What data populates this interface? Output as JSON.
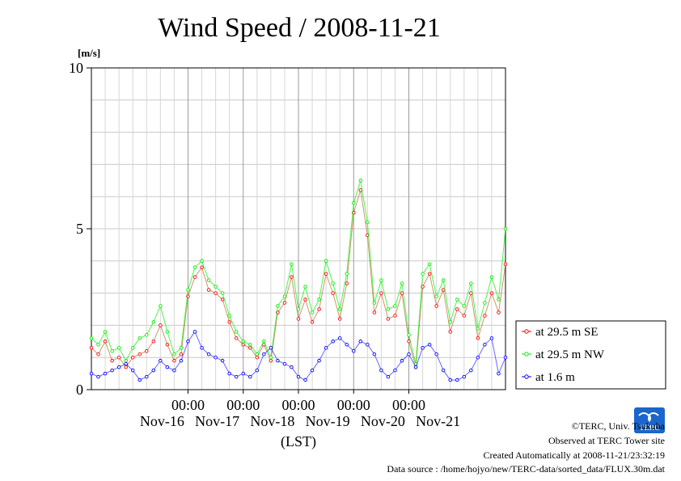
{
  "chart_data": {
    "type": "line",
    "title": "Wind Speed / 2008-11-21",
    "yunit": "[m/s]",
    "ylim": [
      0,
      10
    ],
    "yticks": [
      "0",
      "5",
      "10"
    ],
    "xtick_times": [
      "00:00",
      "00:00",
      "00:00",
      "00:00",
      "00:00"
    ],
    "xtick_dates": [
      "Nov-16",
      "Nov-17",
      "Nov-18",
      "Nov-19",
      "Nov-20",
      "Nov-21"
    ],
    "xlabel": "(LST)",
    "grid": true,
    "legend_position": "right",
    "series": [
      {
        "name": "at 29.5 m SE",
        "color": "#ff0000",
        "x_hours": [
          0,
          3,
          6,
          9,
          12,
          15,
          18,
          21,
          24,
          27,
          30,
          33,
          36,
          39,
          42,
          45,
          48,
          51,
          54,
          57,
          60,
          63,
          66,
          69,
          72,
          75,
          78,
          81,
          84,
          87,
          90,
          93,
          96,
          99,
          102,
          105,
          108,
          111,
          114,
          117,
          120,
          123,
          126,
          129,
          132,
          135,
          138,
          141,
          144,
          147,
          150,
          153,
          156,
          159,
          162,
          165,
          168,
          171,
          174,
          177,
          180
        ],
        "values": [
          1.3,
          1.1,
          1.5,
          0.9,
          1.0,
          0.7,
          1.0,
          1.1,
          1.2,
          1.5,
          2.0,
          1.4,
          0.9,
          1.1,
          2.9,
          3.5,
          3.8,
          3.1,
          3.0,
          2.8,
          2.1,
          1.6,
          1.4,
          1.3,
          1.0,
          1.4,
          0.9,
          2.4,
          2.7,
          3.5,
          2.2,
          2.8,
          2.1,
          2.5,
          3.6,
          3.0,
          2.2,
          3.3,
          5.5,
          6.2,
          4.8,
          2.4,
          3.0,
          2.2,
          2.3,
          3.0,
          1.5,
          0.7,
          3.2,
          3.6,
          2.6,
          3.1,
          1.8,
          2.5,
          2.3,
          3.0,
          1.6,
          2.3,
          3.0,
          2.4,
          3.9
        ]
      },
      {
        "name": "at 29.5 m NW",
        "color": "#00ee00",
        "x_hours": [
          0,
          3,
          6,
          9,
          12,
          15,
          18,
          21,
          24,
          27,
          30,
          33,
          36,
          39,
          42,
          45,
          48,
          51,
          54,
          57,
          60,
          63,
          66,
          69,
          72,
          75,
          78,
          81,
          84,
          87,
          90,
          93,
          96,
          99,
          102,
          105,
          108,
          111,
          114,
          117,
          120,
          123,
          126,
          129,
          132,
          135,
          138,
          141,
          144,
          147,
          150,
          153,
          156,
          159,
          162,
          165,
          168,
          171,
          174,
          177,
          180
        ],
        "values": [
          1.6,
          1.4,
          1.8,
          1.2,
          1.3,
          0.9,
          1.3,
          1.6,
          1.7,
          2.1,
          2.6,
          1.8,
          1.1,
          1.3,
          3.1,
          3.8,
          4.0,
          3.4,
          3.2,
          3.0,
          2.3,
          1.8,
          1.5,
          1.4,
          1.1,
          1.5,
          1.0,
          2.6,
          2.9,
          3.9,
          2.5,
          3.2,
          2.4,
          2.8,
          4.0,
          3.3,
          2.5,
          3.6,
          5.8,
          6.5,
          5.2,
          2.7,
          3.4,
          2.5,
          2.6,
          3.3,
          1.7,
          0.8,
          3.6,
          3.9,
          2.9,
          3.4,
          2.1,
          2.8,
          2.6,
          3.3,
          1.9,
          2.7,
          3.5,
          2.8,
          5.0
        ]
      },
      {
        "name": "at 1.6 m",
        "color": "#0000ff",
        "x_hours": [
          0,
          3,
          6,
          9,
          12,
          15,
          18,
          21,
          24,
          27,
          30,
          33,
          36,
          39,
          42,
          45,
          48,
          51,
          54,
          57,
          60,
          63,
          66,
          69,
          72,
          75,
          78,
          81,
          84,
          87,
          90,
          93,
          96,
          99,
          102,
          105,
          108,
          111,
          114,
          117,
          120,
          123,
          126,
          129,
          132,
          135,
          138,
          141,
          144,
          147,
          150,
          153,
          156,
          159,
          162,
          165,
          168,
          171,
          174,
          177,
          180
        ],
        "values": [
          0.5,
          0.4,
          0.5,
          0.6,
          0.7,
          0.8,
          0.6,
          0.3,
          0.4,
          0.6,
          0.9,
          0.7,
          0.6,
          0.9,
          1.5,
          1.8,
          1.3,
          1.1,
          1.0,
          0.9,
          0.5,
          0.4,
          0.5,
          0.4,
          0.6,
          1.1,
          1.3,
          0.9,
          0.8,
          0.7,
          0.4,
          0.3,
          0.6,
          0.9,
          1.3,
          1.5,
          1.6,
          1.4,
          1.2,
          1.5,
          1.4,
          1.1,
          0.6,
          0.4,
          0.6,
          0.9,
          1.1,
          0.7,
          1.3,
          1.4,
          1.1,
          0.6,
          0.3,
          0.3,
          0.4,
          0.6,
          1.0,
          1.4,
          1.6,
          0.5,
          1.0
        ]
      }
    ]
  },
  "footer": {
    "copyright": "©TERC, Univ. Tsukuba",
    "observed": "Observed at TERC Tower site",
    "created": "Created Automatically at 2008-11-21/23:32:19",
    "source": "Data source : /home/hojyo/new/TERC-data/sorted_data/FLUX.30m.dat"
  },
  "logo": {
    "text": "TERC",
    "color": "#1a66cc"
  }
}
